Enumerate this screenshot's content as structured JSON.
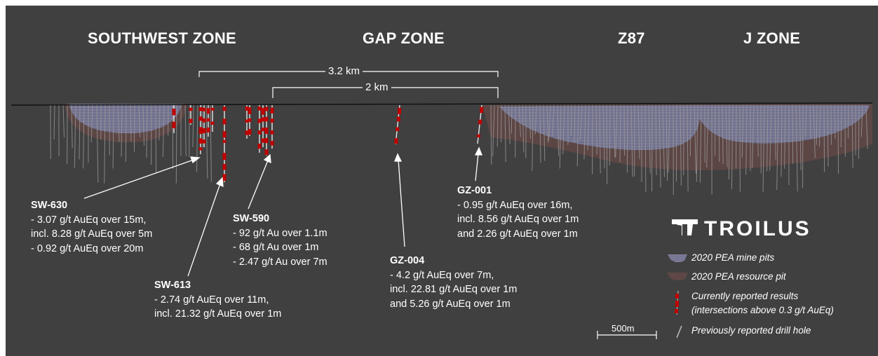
{
  "zones": {
    "southwest": "SOUTHWEST ZONE",
    "gap": "GAP ZONE",
    "z87": "Z87",
    "j": "J ZONE"
  },
  "distances": {
    "long": "3.2 km",
    "short": "2 km"
  },
  "annotations": [
    {
      "hole": "SW-630",
      "lines": [
        "- 3.07 g/t AuEq over 15m,",
        "incl. 8.28 g/t AuEq over 5m",
        "- 0.92 g/t AuEq over 20m"
      ]
    },
    {
      "hole": "SW-613",
      "lines": [
        "- 2.74 g/t AuEq over 11m,",
        "incl. 21.32 g/t AuEq over 1m"
      ]
    },
    {
      "hole": "SW-590",
      "lines": [
        "- 92 g/t Au over 1.1m",
        "- 68 g/t Au over 1m",
        "- 2.47 g/t Au over 7m"
      ]
    },
    {
      "hole": "GZ-004",
      "lines": [
        "- 4.2 g/t AuEq over 7m,",
        "incl. 22.81 g/t AuEq over 1m",
        "and 5.26 g/t AuEq over 1m"
      ]
    },
    {
      "hole": "GZ-001",
      "lines": [
        "- 0.95 g/t AuEq over 16m,",
        "incl. 8.56 g/t AuEq over 1m",
        "and 2.26 g/t AuEq over 1m"
      ]
    }
  ],
  "logo": "TROILUS",
  "legend": {
    "mine_pits": "2020 PEA mine pits",
    "resource_pit": "2020 PEA resource pit",
    "current_line1": "Currently reported results",
    "current_line2": "(intersections above 0.3 g/t AuEq)",
    "previous": "Previously reported drill hole"
  },
  "scale_bar": "500m",
  "colors": {
    "background": "#404040",
    "mine_pit": "#7a7a96",
    "resource_pit": "#6e4f4c",
    "intersection": "#c00000",
    "drill_hole": "#a8a8a8",
    "text": "#ffffff"
  }
}
